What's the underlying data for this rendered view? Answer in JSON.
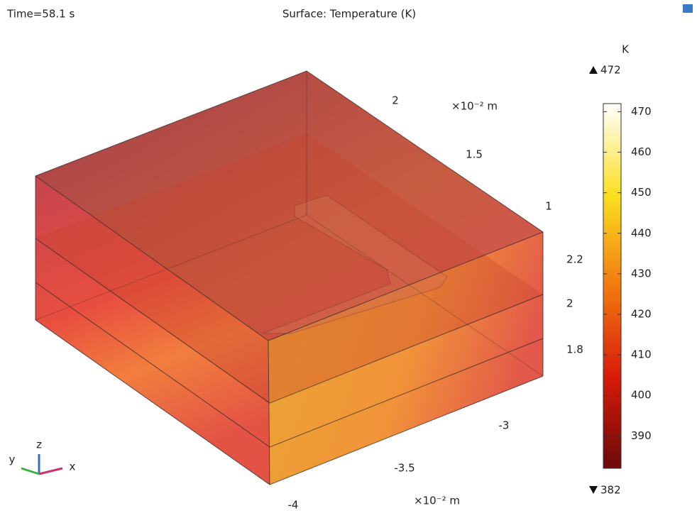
{
  "time_label": "Time=58.1 s",
  "chart_data": {
    "type": "surface3d",
    "title": "Surface: Temperature (K)",
    "axes": {
      "y_ticks": [
        "2",
        "1.5",
        "1"
      ],
      "y_unit": "×10⁻² m",
      "z_ticks": [
        "2.2",
        "2",
        "1.8"
      ],
      "x_ticks": [
        "-3",
        "-3.5",
        "-4"
      ],
      "x_unit": "×10⁻² m",
      "triad": [
        "z",
        "y",
        "x"
      ]
    },
    "colorbar": {
      "label": "K",
      "max": 472,
      "min": 382,
      "ticks": [
        470,
        460,
        450,
        440,
        430,
        420,
        410,
        400,
        390
      ]
    }
  }
}
